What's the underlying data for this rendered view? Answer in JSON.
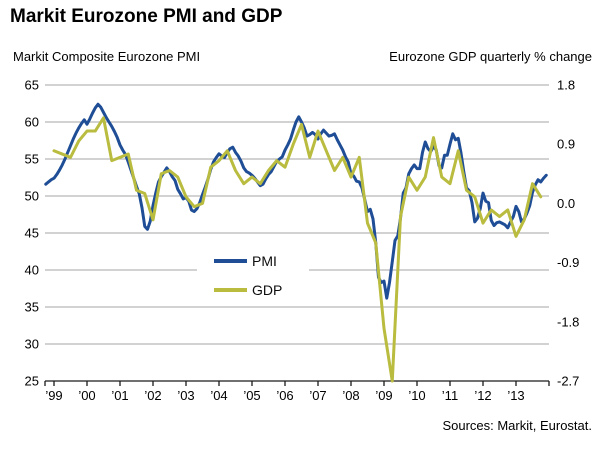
{
  "title": "Markit Eurozone PMI and GDP",
  "source": "Sources: Markit, Eurostat.",
  "legend": [
    {
      "label": "PMI",
      "color": "#1F4E96"
    },
    {
      "label": "GDP",
      "color": "#B9BC3F"
    }
  ],
  "chart_data": {
    "type": "line",
    "title": "Markit Eurozone PMI and GDP",
    "grid": true,
    "legend_position": "inside-center-left",
    "colors": {
      "grid": "#A6A6A6",
      "axis": "#1a1a1a",
      "pmi": "#1F4E96",
      "gdp": "#B9BC3F"
    },
    "left_axis": {
      "label": "Markit Composite Eurozone PMI",
      "min": 25,
      "max": 65,
      "ticks": [
        65,
        60,
        55,
        50,
        45,
        40,
        35,
        30,
        25
      ]
    },
    "right_axis": {
      "label": "Eurozone GDP quarterly % change",
      "min": -2.7,
      "max": 1.8,
      "tick_labels": [
        "1.8",
        "0.9",
        "0.0",
        "-0.9",
        "-1.8",
        "-2.7"
      ]
    },
    "x_axis": {
      "year_labels": [
        "’99",
        "’00",
        "’01",
        "’02",
        "’03",
        "’04",
        "’05",
        "’06",
        "’07",
        "’08",
        "’09",
        "’10",
        "’11",
        "’12",
        "’13"
      ],
      "first_year": 1999,
      "last_year": 2013
    },
    "series": [
      {
        "name": "PMI",
        "axis": "left",
        "freq": "monthly",
        "start": "1998-10",
        "values": [
          51.6,
          51.9,
          52.2,
          52.4,
          52.9,
          53.5,
          54.2,
          55.0,
          55.9,
          56.8,
          57.7,
          58.5,
          59.2,
          59.8,
          60.3,
          59.7,
          60.4,
          61.2,
          61.9,
          62.4,
          62.0,
          61.3,
          60.6,
          60.0,
          59.4,
          58.7,
          57.9,
          56.9,
          56.2,
          55.6,
          54.6,
          53.5,
          52.4,
          51.3,
          50.3,
          48.4,
          45.9,
          45.5,
          46.6,
          48.7,
          50.4,
          51.9,
          52.6,
          53.2,
          53.8,
          53.3,
          52.6,
          52.1,
          50.9,
          50.3,
          49.6,
          49.8,
          49.3,
          48.1,
          47.9,
          48.3,
          49.1,
          50.2,
          51.2,
          52.3,
          53.6,
          54.6,
          55.2,
          55.7,
          55.4,
          55.2,
          55.9,
          56.4,
          56.6,
          55.9,
          55.4,
          54.7,
          53.8,
          53.3,
          53.1,
          52.8,
          52.4,
          51.9,
          51.4,
          51.6,
          52.3,
          52.9,
          53.3,
          54.0,
          54.7,
          55.0,
          55.3,
          56.2,
          56.9,
          57.7,
          58.9,
          60.0,
          60.7,
          60.0,
          59.2,
          58.1,
          58.3,
          58.6,
          58.3,
          57.7,
          58.4,
          58.9,
          58.5,
          58.1,
          58.2,
          58.4,
          57.6,
          56.9,
          56.2,
          55.3,
          54.6,
          53.0,
          52.7,
          52.0,
          51.9,
          51.1,
          49.5,
          47.9,
          48.2,
          46.9,
          43.7,
          39.0,
          38.3,
          38.5,
          36.2,
          38.3,
          41.1,
          44.0,
          44.6,
          47.0,
          50.4,
          51.1,
          53.0,
          53.7,
          54.2,
          53.7,
          53.7,
          55.9,
          57.3,
          56.4,
          56.0,
          56.7,
          56.2,
          54.1,
          53.8,
          55.5,
          55.5,
          57.0,
          58.4,
          57.6,
          57.8,
          55.8,
          53.3,
          51.1,
          50.7,
          49.1,
          46.5,
          47.0,
          48.3,
          50.4,
          49.3,
          49.1,
          46.7,
          46.0,
          46.4,
          46.5,
          46.3,
          46.1,
          45.7,
          46.5,
          47.2,
          48.6,
          47.9,
          46.5,
          46.9,
          47.7,
          48.7,
          50.5,
          51.5,
          52.2,
          51.9,
          52.4,
          52.8
        ]
      },
      {
        "name": "GDP",
        "axis": "right",
        "freq": "quarterly",
        "start": "1998-Q4",
        "values": [
          0.8,
          0.75,
          0.7,
          0.95,
          1.1,
          1.1,
          1.3,
          0.65,
          0.7,
          0.75,
          0.2,
          0.15,
          -0.25,
          0.45,
          0.5,
          0.4,
          0.1,
          -0.05,
          0.0,
          0.55,
          0.65,
          0.8,
          0.5,
          0.3,
          0.4,
          0.3,
          0.5,
          0.65,
          0.55,
          0.9,
          1.2,
          0.7,
          1.1,
          0.8,
          0.5,
          0.7,
          0.4,
          0.7,
          -0.3,
          -0.6,
          -1.9,
          -2.7,
          -0.2,
          0.4,
          0.2,
          0.4,
          1.0,
          0.4,
          0.3,
          0.8,
          0.2,
          0.1,
          -0.3,
          -0.1,
          -0.2,
          -0.1,
          -0.5,
          -0.25,
          0.3,
          0.1
        ]
      }
    ]
  }
}
